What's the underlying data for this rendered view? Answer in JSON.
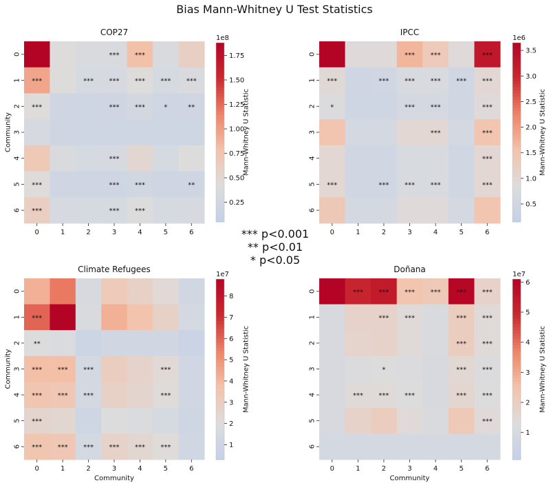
{
  "suptitle": "Bias Mann-Whitney U Test Statistics",
  "significance_legend": [
    "*** p<0.001",
    "** p<0.01",
    "* p<0.05"
  ],
  "colormap": {
    "name": "coolwarm",
    "stops": [
      "#c3d1e8",
      "#dddcdc",
      "#f3c3ab",
      "#ee8468",
      "#c92a2f",
      "#b40426"
    ]
  },
  "chart_data": [
    {
      "type": "heatmap",
      "title": "COP27",
      "xlabel": "",
      "ylabel": "Community",
      "categories": [
        "0",
        "1",
        "2",
        "3",
        "4",
        "5",
        "6"
      ],
      "colorbar_label": "Mann-Whitney U Statistic",
      "colorbar_ticks": [
        "0.25",
        "0.50",
        "0.75",
        "1.00",
        "1.25",
        "1.50",
        "1.75"
      ],
      "colorbar_tick_values": [
        0.25,
        0.5,
        0.75,
        1.0,
        1.25,
        1.5,
        1.75
      ],
      "colorbar_scale": "1e8",
      "vmin": 0.05,
      "vmax": 1.88,
      "values": [
        [
          1.88,
          0.42,
          0.35,
          0.35,
          0.8,
          0.35,
          0.6
        ],
        [
          0.95,
          0.42,
          0.3,
          0.32,
          0.42,
          0.3,
          0.35
        ],
        [
          0.42,
          0.22,
          0.2,
          0.22,
          0.28,
          0.2,
          0.22
        ],
        [
          0.32,
          0.22,
          0.2,
          0.2,
          0.2,
          0.2,
          0.2
        ],
        [
          0.7,
          0.35,
          0.3,
          0.32,
          0.5,
          0.3,
          0.4
        ],
        [
          0.42,
          0.22,
          0.2,
          0.2,
          0.25,
          0.2,
          0.2
        ],
        [
          0.62,
          0.32,
          0.3,
          0.3,
          0.4,
          0.3,
          0.32
        ]
      ],
      "annotations": [
        [
          "",
          "",
          "",
          "***",
          "***",
          "",
          ""
        ],
        [
          "***",
          "",
          "***",
          "***",
          "***",
          "***",
          "***"
        ],
        [
          "***",
          "",
          "",
          "***",
          "***",
          "*",
          "**"
        ],
        [
          "",
          "",
          "",
          "",
          "",
          "",
          ""
        ],
        [
          "",
          "",
          "",
          "***",
          "",
          "",
          ""
        ],
        [
          "***",
          "",
          "",
          "***",
          "***",
          "",
          "**"
        ],
        [
          "***",
          "",
          "",
          "***",
          "***",
          "",
          ""
        ]
      ]
    },
    {
      "type": "heatmap",
      "title": "IPCC",
      "xlabel": "",
      "ylabel": "",
      "categories": [
        "0",
        "1",
        "2",
        "3",
        "4",
        "5",
        "6"
      ],
      "colorbar_label": "Mann-Whitney U Statistic",
      "colorbar_ticks": [
        "0.5",
        "1.0",
        "1.5",
        "2.0",
        "2.5",
        "3.0",
        "3.5"
      ],
      "colorbar_tick_values": [
        0.5,
        1.0,
        1.5,
        2.0,
        2.5,
        3.0,
        3.5
      ],
      "colorbar_scale": "1e6",
      "vmin": 0.15,
      "vmax": 3.65,
      "values": [
        [
          3.65,
          0.9,
          0.9,
          1.7,
          1.35,
          0.9,
          3.3
        ],
        [
          0.95,
          0.45,
          0.5,
          0.7,
          0.7,
          0.5,
          1.0
        ],
        [
          0.8,
          0.45,
          0.45,
          0.6,
          0.6,
          0.5,
          0.9
        ],
        [
          1.5,
          0.6,
          0.6,
          1.0,
          1.0,
          0.6,
          1.5
        ],
        [
          1.0,
          0.5,
          0.5,
          0.7,
          0.7,
          0.5,
          1.0
        ],
        [
          1.0,
          0.5,
          0.5,
          0.7,
          0.7,
          0.5,
          1.0
        ],
        [
          1.4,
          0.6,
          0.6,
          0.9,
          0.9,
          0.6,
          1.5
        ]
      ],
      "annotations": [
        [
          "",
          "",
          "",
          "***",
          "***",
          "",
          "***"
        ],
        [
          "***",
          "",
          "***",
          "***",
          "***",
          "***",
          "***"
        ],
        [
          "*",
          "",
          "",
          "***",
          "***",
          "",
          "***"
        ],
        [
          "",
          "",
          "",
          "",
          "***",
          "",
          "***"
        ],
        [
          "",
          "",
          "",
          "",
          "",
          "",
          "***"
        ],
        [
          "***",
          "",
          "***",
          "***",
          "***",
          "",
          "***"
        ],
        [
          "",
          "",
          "",
          "",
          "",
          "",
          ""
        ]
      ]
    },
    {
      "type": "heatmap",
      "title": "Climate Refugees",
      "xlabel": "Community",
      "ylabel": "Community",
      "categories": [
        "0",
        "1",
        "2",
        "3",
        "4",
        "5",
        "6"
      ],
      "colorbar_label": "Mann-Whitney U Statistic",
      "colorbar_ticks": [
        "1",
        "2",
        "3",
        "4",
        "5",
        "6",
        "7",
        "8"
      ],
      "colorbar_tick_values": [
        1,
        2,
        3,
        4,
        5,
        6,
        7,
        8
      ],
      "colorbar_scale": "1e7",
      "vmin": 0.3,
      "vmax": 8.8,
      "values": [
        [
          4.2,
          5.6,
          1.6,
          3.2,
          2.8,
          2.2,
          1.2
        ],
        [
          6.0,
          8.8,
          1.7,
          4.2,
          3.6,
          2.8,
          1.4
        ],
        [
          2.0,
          1.8,
          0.9,
          1.2,
          1.2,
          1.2,
          0.8
        ],
        [
          3.8,
          3.8,
          1.4,
          3.0,
          2.6,
          2.2,
          1.2
        ],
        [
          3.5,
          3.4,
          1.4,
          2.8,
          2.5,
          2.1,
          1.2
        ],
        [
          2.5,
          2.4,
          1.0,
          2.0,
          1.8,
          1.5,
          1.0
        ],
        [
          3.5,
          3.4,
          1.4,
          2.7,
          2.4,
          2.1,
          1.2
        ]
      ],
      "annotations": [
        [
          "",
          "",
          "",
          "",
          "",
          "",
          ""
        ],
        [
          "***",
          "",
          "",
          "",
          "",
          "",
          ""
        ],
        [
          "**",
          "",
          "",
          "",
          "",
          "",
          ""
        ],
        [
          "***",
          "***",
          "***",
          "",
          "",
          "***",
          ""
        ],
        [
          "***",
          "***",
          "***",
          "",
          "",
          "***",
          ""
        ],
        [
          "***",
          "",
          "",
          "",
          "",
          "",
          ""
        ],
        [
          "***",
          "***",
          "***",
          "***",
          "***",
          "***",
          ""
        ]
      ]
    },
    {
      "type": "heatmap",
      "title": "Doñana",
      "xlabel": "Community",
      "ylabel": "",
      "categories": [
        "0",
        "1",
        "2",
        "3",
        "4",
        "5",
        "6"
      ],
      "colorbar_label": "Mann-Whitney U Statistic",
      "colorbar_ticks": [
        "1",
        "2",
        "3",
        "4",
        "5",
        "6"
      ],
      "colorbar_tick_values": [
        1,
        2,
        3,
        4,
        5,
        6
      ],
      "colorbar_scale": "1e7",
      "vmin": 0.1,
      "vmax": 6.1,
      "values": [
        [
          6.1,
          5.1,
          5.4,
          2.4,
          2.2,
          6.0,
          1.8
        ],
        [
          1.0,
          1.8,
          1.8,
          1.4,
          1.1,
          2.0,
          1.4
        ],
        [
          1.0,
          1.7,
          1.8,
          1.4,
          1.1,
          2.0,
          1.4
        ],
        [
          1.0,
          1.2,
          1.3,
          1.2,
          1.0,
          1.5,
          1.2
        ],
        [
          1.0,
          1.4,
          1.4,
          1.3,
          1.0,
          1.6,
          1.3
        ],
        [
          1.0,
          1.8,
          2.0,
          1.4,
          1.1,
          2.2,
          1.4
        ],
        [
          0.9,
          0.9,
          0.9,
          0.9,
          0.9,
          0.9,
          0.9
        ]
      ],
      "annotations": [
        [
          "",
          "***",
          "***",
          "***",
          "***",
          "***",
          "***"
        ],
        [
          "",
          "",
          "***",
          "***",
          "",
          "***",
          "***"
        ],
        [
          "",
          "",
          "",
          "",
          "",
          "***",
          "***"
        ],
        [
          "",
          "",
          "*",
          "",
          "",
          "***",
          "***"
        ],
        [
          "",
          "***",
          "***",
          "***",
          "",
          "***",
          "***"
        ],
        [
          "",
          "",
          "",
          "",
          "",
          "",
          "***"
        ],
        [
          "",
          "",
          "",
          "",
          "",
          "",
          ""
        ]
      ]
    }
  ]
}
